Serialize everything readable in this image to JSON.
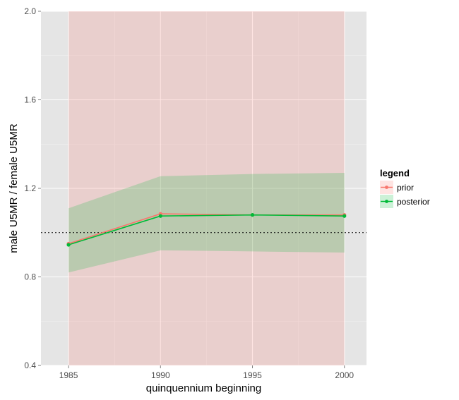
{
  "chart_data": {
    "type": "line",
    "xlabel": "quinquennium beginning",
    "ylabel": "male U5MR / female U5MR",
    "xlim": [
      1983.5,
      2001.2
    ],
    "ylim": [
      0.4,
      2.0
    ],
    "x_ticks": [
      1985,
      1990,
      1995,
      2000
    ],
    "y_ticks": [
      0.4,
      0.8,
      1.2,
      1.6,
      2.0
    ],
    "x_tick_labels": [
      "1985",
      "1990",
      "1995",
      "2000"
    ],
    "y_tick_labels": [
      "0.4",
      "0.8",
      "1.2",
      "1.6",
      "2.0"
    ],
    "reference_line": 1.0,
    "grid": true,
    "legend_title": "legend",
    "legend_position": "right",
    "series": [
      {
        "name": "prior",
        "color": "#f8766d",
        "x": [
          1985,
          1990,
          1995,
          2000
        ],
        "values": [
          0.95,
          1.085,
          1.08,
          1.08
        ],
        "lower": [
          0.4,
          0.4,
          0.4,
          0.4
        ],
        "upper": [
          2.0,
          2.0,
          2.0,
          2.0
        ]
      },
      {
        "name": "posterior",
        "color": "#00ba38",
        "x": [
          1985,
          1990,
          1995,
          2000
        ],
        "values": [
          0.945,
          1.075,
          1.08,
          1.075
        ],
        "lower": [
          0.82,
          0.92,
          0.915,
          0.91
        ],
        "upper": [
          1.11,
          1.255,
          1.265,
          1.27
        ]
      }
    ]
  }
}
